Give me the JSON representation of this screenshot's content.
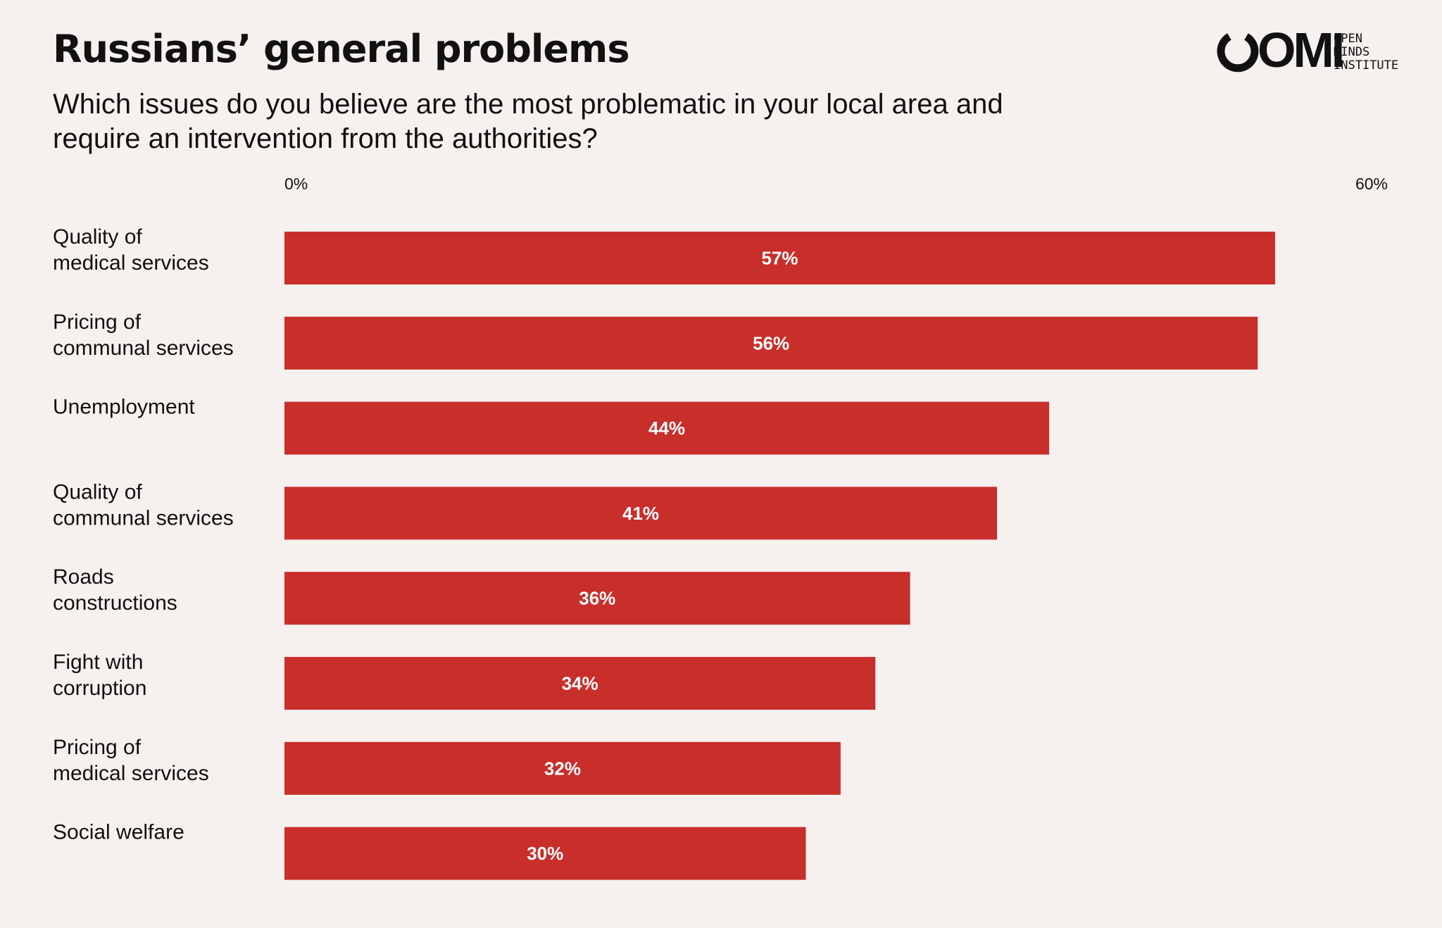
{
  "header": {
    "title": "Russians’ general problems",
    "subtitle": "Which issues do you believe are the most problematic in your local area and require an intervention from the authorities?"
  },
  "logo": {
    "letters": "OMI",
    "lines": [
      "OPEN",
      "MINDS",
      "INSTITUTE"
    ]
  },
  "colors": {
    "background": "#f6f1ef",
    "bar": "#c82e2a",
    "text": "#111111",
    "value_text": "#ffffff"
  },
  "chart_data": {
    "type": "bar",
    "orientation": "horizontal",
    "title": "Russians’ general problems",
    "xlabel": "",
    "ylabel": "",
    "xlim": [
      0,
      60
    ],
    "ticks": [
      {
        "value": 0,
        "label": "0%"
      },
      {
        "value": 60,
        "label": "60%"
      }
    ],
    "grid": false,
    "categories": [
      [
        "Quality of",
        "medical services"
      ],
      [
        "Pricing of",
        "communal services"
      ],
      [
        "Unemployment"
      ],
      [
        "Quality of",
        "communal services"
      ],
      [
        "Roads",
        "constructions"
      ],
      [
        "Fight with",
        "corruption"
      ],
      [
        "Pricing of",
        "medical services"
      ],
      [
        "Social welfare"
      ]
    ],
    "values": [
      57,
      56,
      44,
      41,
      36,
      34,
      32,
      30
    ],
    "value_labels": [
      "57%",
      "56%",
      "44%",
      "41%",
      "36%",
      "34%",
      "32%",
      "30%"
    ]
  }
}
